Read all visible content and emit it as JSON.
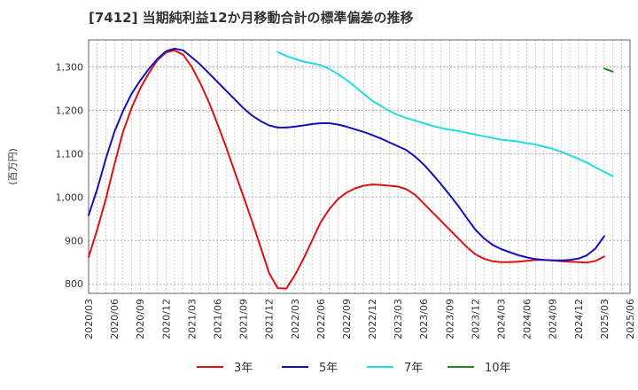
{
  "chart_data": {
    "type": "line",
    "title": "[7412]  当期純利益12か月移動合計の標準偏差の推移",
    "ylabel": "(百万円)",
    "xlabel": "",
    "ylim": [
      778,
      1362
    ],
    "yticks": [
      800,
      900,
      1000,
      1100,
      1200,
      1300
    ],
    "ytick_labels": [
      "800",
      "900",
      "1,000",
      "1,100",
      "1,200",
      "1,300"
    ],
    "xlim": [
      "2020-03",
      "2025-06"
    ],
    "xticks": [
      "2020/03",
      "2020/06",
      "2020/09",
      "2020/12",
      "2021/03",
      "2021/06",
      "2021/09",
      "2021/12",
      "2022/03",
      "2022/06",
      "2022/09",
      "2022/12",
      "2023/03",
      "2023/06",
      "2023/09",
      "2023/12",
      "2024/03",
      "2024/06",
      "2024/09",
      "2024/12",
      "2025/03",
      "2025/06"
    ],
    "grid": true,
    "legend_position": "bottom",
    "series": [
      {
        "name": "3年",
        "color": "#dd1111",
        "points": [
          [
            "2020-03",
            862
          ],
          [
            "2020-04",
            925
          ],
          [
            "2020-05",
            995
          ],
          [
            "2020-06",
            1075
          ],
          [
            "2020-07",
            1150
          ],
          [
            "2020-08",
            1205
          ],
          [
            "2020-09",
            1250
          ],
          [
            "2020-10",
            1285
          ],
          [
            "2020-11",
            1315
          ],
          [
            "2020-12",
            1333
          ],
          [
            "2021-01",
            1338
          ],
          [
            "2021-02",
            1328
          ],
          [
            "2021-03",
            1300
          ],
          [
            "2021-04",
            1262
          ],
          [
            "2021-05",
            1218
          ],
          [
            "2021-06",
            1168
          ],
          [
            "2021-07",
            1115
          ],
          [
            "2021-08",
            1058
          ],
          [
            "2021-09",
            1002
          ],
          [
            "2021-10",
            945
          ],
          [
            "2021-11",
            885
          ],
          [
            "2021-12",
            825
          ],
          [
            "2022-01",
            790
          ],
          [
            "2022-02",
            789
          ],
          [
            "2022-03",
            820
          ],
          [
            "2022-04",
            858
          ],
          [
            "2022-05",
            900
          ],
          [
            "2022-06",
            942
          ],
          [
            "2022-07",
            972
          ],
          [
            "2022-08",
            995
          ],
          [
            "2022-09",
            1010
          ],
          [
            "2022-10",
            1020
          ],
          [
            "2022-11",
            1026
          ],
          [
            "2022-12",
            1029
          ],
          [
            "2023-01",
            1028
          ],
          [
            "2023-02",
            1026
          ],
          [
            "2023-03",
            1024
          ],
          [
            "2023-04",
            1018
          ],
          [
            "2023-05",
            1005
          ],
          [
            "2023-06",
            985
          ],
          [
            "2023-07",
            965
          ],
          [
            "2023-08",
            945
          ],
          [
            "2023-09",
            925
          ],
          [
            "2023-10",
            905
          ],
          [
            "2023-11",
            885
          ],
          [
            "2023-12",
            868
          ],
          [
            "2024-01",
            858
          ],
          [
            "2024-02",
            852
          ],
          [
            "2024-03",
            850
          ],
          [
            "2024-04",
            850
          ],
          [
            "2024-05",
            851
          ],
          [
            "2024-06",
            853
          ],
          [
            "2024-07",
            855
          ],
          [
            "2024-08",
            855
          ],
          [
            "2024-09",
            854
          ],
          [
            "2024-10",
            852
          ],
          [
            "2024-11",
            851
          ],
          [
            "2024-12",
            850
          ],
          [
            "2025-01",
            849
          ],
          [
            "2025-02",
            853
          ],
          [
            "2025-03",
            863
          ]
        ]
      },
      {
        "name": "5年",
        "color": "#1111bb",
        "points": [
          [
            "2020-03",
            958
          ],
          [
            "2020-04",
            1018
          ],
          [
            "2020-05",
            1088
          ],
          [
            "2020-06",
            1150
          ],
          [
            "2020-07",
            1198
          ],
          [
            "2020-08",
            1238
          ],
          [
            "2020-09",
            1268
          ],
          [
            "2020-10",
            1295
          ],
          [
            "2020-11",
            1318
          ],
          [
            "2020-12",
            1336
          ],
          [
            "2021-01",
            1342
          ],
          [
            "2021-02",
            1338
          ],
          [
            "2021-03",
            1322
          ],
          [
            "2021-04",
            1305
          ],
          [
            "2021-05",
            1285
          ],
          [
            "2021-06",
            1265
          ],
          [
            "2021-07",
            1245
          ],
          [
            "2021-08",
            1225
          ],
          [
            "2021-09",
            1205
          ],
          [
            "2021-10",
            1188
          ],
          [
            "2021-11",
            1175
          ],
          [
            "2021-12",
            1165
          ],
          [
            "2022-01",
            1160
          ],
          [
            "2022-02",
            1160
          ],
          [
            "2022-03",
            1162
          ],
          [
            "2022-04",
            1165
          ],
          [
            "2022-05",
            1168
          ],
          [
            "2022-06",
            1170
          ],
          [
            "2022-07",
            1170
          ],
          [
            "2022-08",
            1167
          ],
          [
            "2022-09",
            1162
          ],
          [
            "2022-10",
            1156
          ],
          [
            "2022-11",
            1150
          ],
          [
            "2022-12",
            1143
          ],
          [
            "2023-01",
            1135
          ],
          [
            "2023-02",
            1126
          ],
          [
            "2023-03",
            1117
          ],
          [
            "2023-04",
            1108
          ],
          [
            "2023-05",
            1093
          ],
          [
            "2023-06",
            1075
          ],
          [
            "2023-07",
            1053
          ],
          [
            "2023-08",
            1030
          ],
          [
            "2023-09",
            1005
          ],
          [
            "2023-10",
            980
          ],
          [
            "2023-11",
            952
          ],
          [
            "2023-12",
            925
          ],
          [
            "2024-01",
            905
          ],
          [
            "2024-02",
            890
          ],
          [
            "2024-03",
            880
          ],
          [
            "2024-04",
            873
          ],
          [
            "2024-05",
            866
          ],
          [
            "2024-06",
            861
          ],
          [
            "2024-07",
            857
          ],
          [
            "2024-08",
            855
          ],
          [
            "2024-09",
            854
          ],
          [
            "2024-10",
            854
          ],
          [
            "2024-11",
            855
          ],
          [
            "2024-12",
            858
          ],
          [
            "2025-01",
            866
          ],
          [
            "2025-02",
            882
          ],
          [
            "2025-03",
            910
          ]
        ]
      },
      {
        "name": "7年",
        "color": "#22dddd",
        "points": [
          [
            "2022-01",
            1334
          ],
          [
            "2022-02",
            1325
          ],
          [
            "2022-03",
            1318
          ],
          [
            "2022-04",
            1312
          ],
          [
            "2022-05",
            1308
          ],
          [
            "2022-06",
            1304
          ],
          [
            "2022-07",
            1295
          ],
          [
            "2022-08",
            1283
          ],
          [
            "2022-09",
            1270
          ],
          [
            "2022-10",
            1254
          ],
          [
            "2022-11",
            1238
          ],
          [
            "2022-12",
            1222
          ],
          [
            "2023-01",
            1210
          ],
          [
            "2023-02",
            1198
          ],
          [
            "2023-03",
            1189
          ],
          [
            "2023-04",
            1182
          ],
          [
            "2023-05",
            1176
          ],
          [
            "2023-06",
            1170
          ],
          [
            "2023-07",
            1164
          ],
          [
            "2023-08",
            1159
          ],
          [
            "2023-09",
            1155
          ],
          [
            "2023-10",
            1152
          ],
          [
            "2023-11",
            1148
          ],
          [
            "2023-12",
            1144
          ],
          [
            "2024-01",
            1140
          ],
          [
            "2024-02",
            1136
          ],
          [
            "2024-03",
            1132
          ],
          [
            "2024-04",
            1130
          ],
          [
            "2024-05",
            1128
          ],
          [
            "2024-06",
            1124
          ],
          [
            "2024-07",
            1121
          ],
          [
            "2024-08",
            1116
          ],
          [
            "2024-09",
            1111
          ],
          [
            "2024-10",
            1104
          ],
          [
            "2024-11",
            1096
          ],
          [
            "2024-12",
            1088
          ],
          [
            "2025-01",
            1079
          ],
          [
            "2025-02",
            1068
          ],
          [
            "2025-03",
            1058
          ],
          [
            "2025-04",
            1048
          ]
        ]
      },
      {
        "name": "10年",
        "color": "#228822",
        "points": [
          [
            "2025-03",
            1296
          ],
          [
            "2025-04",
            1289
          ]
        ]
      }
    ]
  }
}
